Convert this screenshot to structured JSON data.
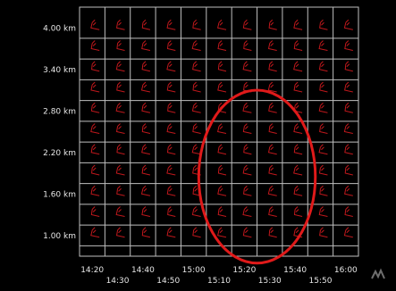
{
  "chart_data": {
    "type": "scatter",
    "description_visible_text_only": true,
    "y_tick_labels": [
      "4.00 km",
      "3.40 km",
      "2.80 km",
      "2.20 km",
      "1.60 km",
      "1.00 km"
    ],
    "y_tick_values": [
      4.0,
      3.4,
      2.8,
      2.2,
      1.6,
      1.0
    ],
    "x_tick_labels_upper": [
      "14:20",
      "14:40",
      "15:00",
      "15:20",
      "15:40",
      "16:00"
    ],
    "x_tick_labels_lower": [
      "14:30",
      "14:50",
      "15:10",
      "15:30",
      "15:50"
    ],
    "x_tick_values_upper": [
      "14:20",
      "14:40",
      "15:00",
      "15:20",
      "15:40",
      "16:00"
    ],
    "x_tick_values_lower": [
      "14:30",
      "14:50",
      "15:10",
      "15:30",
      "15:50"
    ],
    "xlim": [
      "14:20",
      "16:00"
    ],
    "ylim": [
      0.7,
      4.3
    ],
    "grid": true,
    "marks": "wind-barb-glyphs",
    "heights_km": [
      1.0,
      1.3,
      1.6,
      1.9,
      2.2,
      2.5,
      2.8,
      3.1,
      3.4,
      3.7,
      4.0
    ],
    "times": [
      "14:20",
      "14:30",
      "14:40",
      "14:50",
      "15:00",
      "15:10",
      "15:20",
      "15:30",
      "15:40",
      "15:50",
      "16:00"
    ],
    "annotation": {
      "shape": "circle",
      "color": "#e01a1a",
      "center_time": "15:25",
      "center_height_km": 1.85,
      "time_radius_min": 23,
      "height_radius_km": 1.25
    },
    "colors": {
      "background": "#000000",
      "plot": "#000000",
      "grid": "#bfbfbf",
      "barb": "#c0181c",
      "ticks": "#e6e6e6",
      "annotation": "#e01a1a"
    }
  }
}
